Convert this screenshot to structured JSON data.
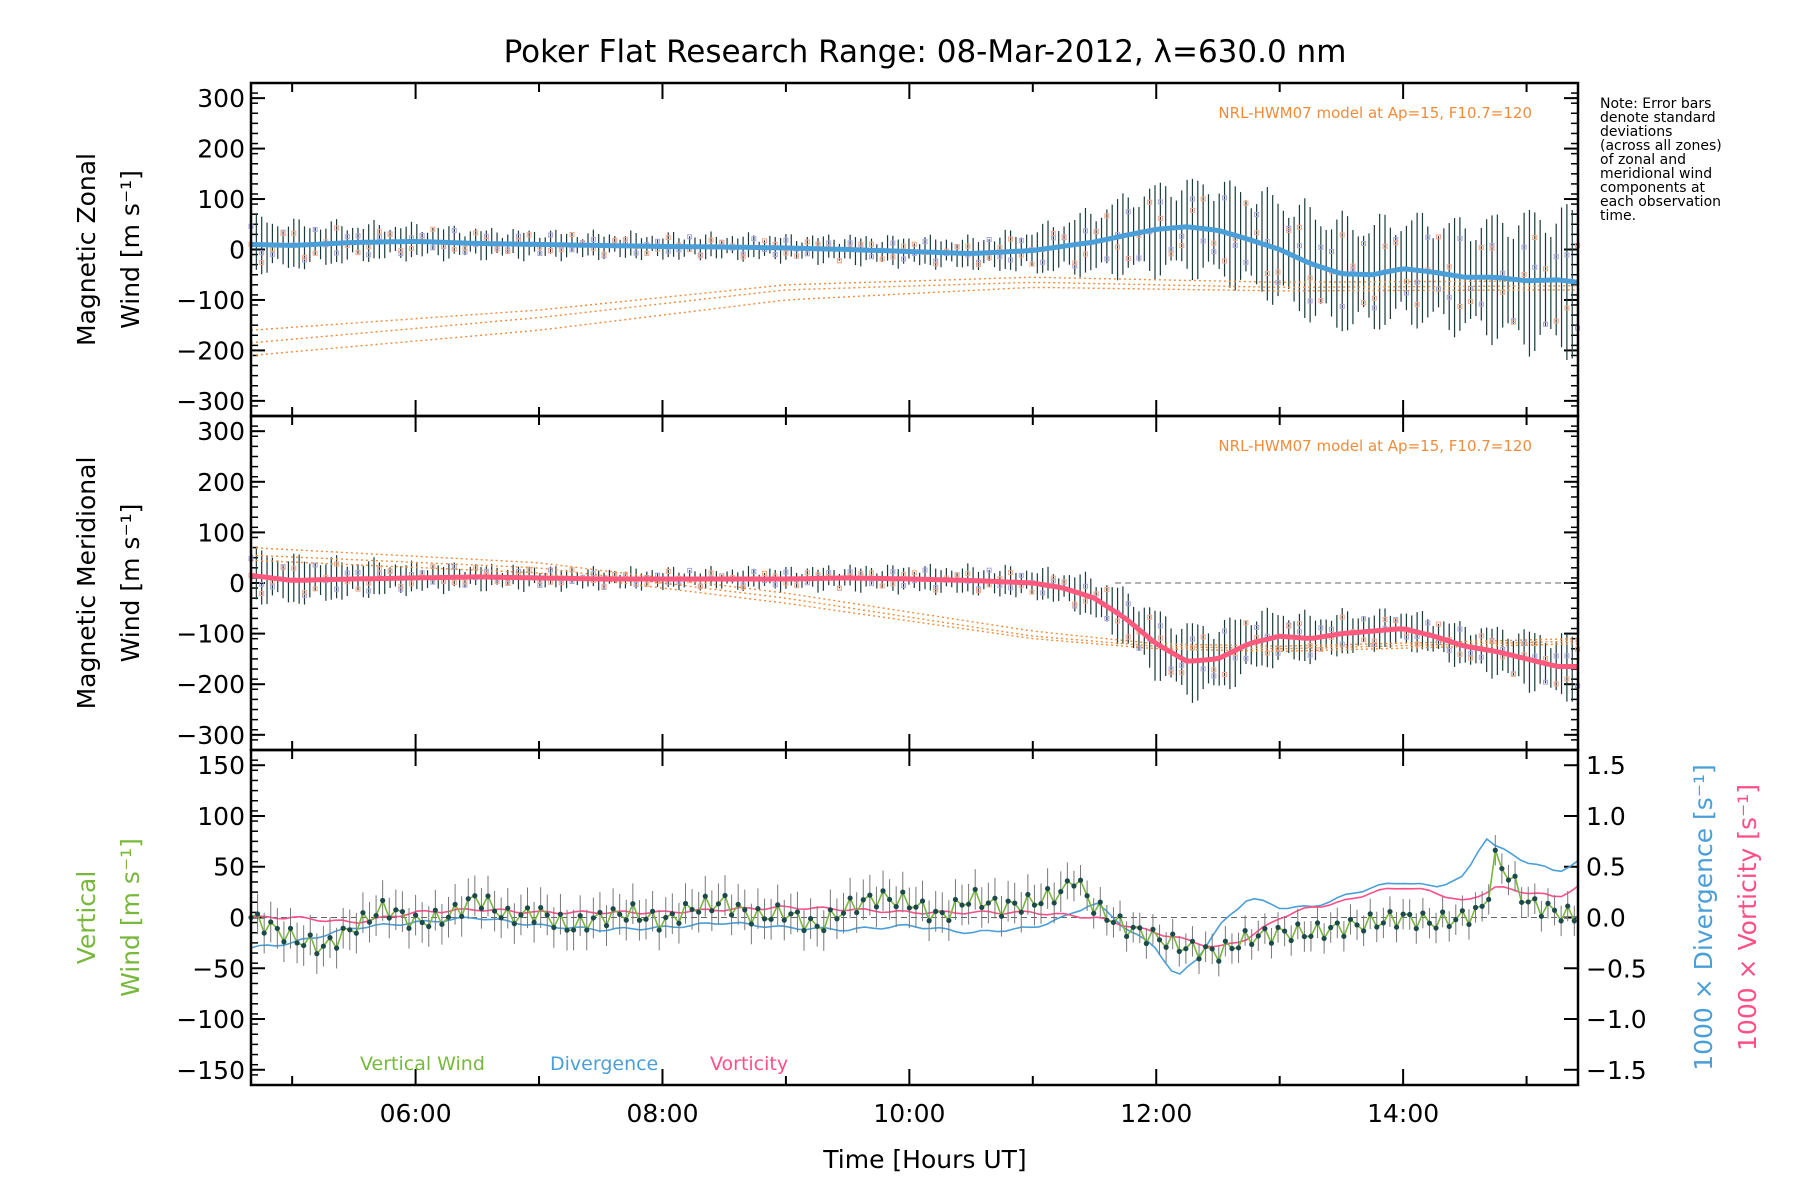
{
  "figure": {
    "title": "Poker Flat Research Range: 08-Mar-2012, λ=630.0 nm",
    "note_lines": [
      "Note: Error bars",
      "denote standard",
      "deviations",
      "(across all zones)",
      "of zonal and",
      "meridional wind",
      "components at",
      "each observation",
      "time."
    ],
    "model_label": "NRL-HWM07 model at Ap=15, F10.7=120",
    "xlabel": "Time [Hours UT]"
  },
  "colors": {
    "zonal": "#4a9fd8",
    "zonal_dark": "#2a55d0",
    "meridional": "#ff5a7e",
    "vertical": "#78b83c",
    "vertical_points": "#1c4a4a",
    "divergence": "#4a9fd8",
    "vorticity": "#ff4f86",
    "model": "#f08c3c",
    "scatter": "#a9a6e2",
    "zone_orange": "#f5a98a"
  },
  "chart_data": [
    {
      "type": "line",
      "panel": "zonal",
      "ylabel_lines": [
        "Magnetic Zonal",
        "Wind [m s⁻¹]"
      ],
      "ylim": [
        -330,
        330
      ],
      "yticks": [
        300,
        200,
        100,
        0,
        -100,
        -200,
        -300
      ],
      "ytick_labels": [
        "300",
        "200",
        "100",
        "0",
        "−100",
        "−200",
        "−300"
      ],
      "xlim": [
        "04:40",
        "15:25"
      ],
      "annotation": "NRL-HWM07 model at Ap=15, F10.7=120",
      "series": [
        {
          "x": [
            "04:40",
            "05:00",
            "05:30",
            "06:00",
            "06:30",
            "07:00",
            "07:30",
            "08:00",
            "08:30",
            "09:00",
            "09:30",
            "10:00",
            "10:30",
            "11:00",
            "11:30",
            "11:45",
            "12:00",
            "12:15",
            "12:30",
            "12:45",
            "13:00",
            "13:15",
            "13:30",
            "13:45",
            "14:00",
            "14:15",
            "14:30",
            "14:45",
            "15:00",
            "15:15",
            "15:25"
          ],
          "values": [
            10,
            8,
            14,
            16,
            12,
            10,
            8,
            6,
            5,
            3,
            0,
            -4,
            -8,
            -2,
            15,
            28,
            40,
            45,
            38,
            20,
            0,
            -28,
            -48,
            -50,
            -38,
            -45,
            -55,
            -55,
            -62,
            -60,
            -65
          ],
          "errors": [
            60,
            50,
            40,
            35,
            30,
            28,
            26,
            25,
            25,
            26,
            28,
            30,
            32,
            45,
            70,
            85,
            95,
            100,
            105,
            110,
            115,
            120,
            120,
            115,
            115,
            115,
            120,
            130,
            145,
            150,
            160
          ]
        }
      ],
      "model_series": [
        {
          "x": [
            "04:40",
            "07:00",
            "09:00",
            "11:00",
            "13:00",
            "15:25"
          ],
          "values": [
            -160,
            -120,
            -70,
            -55,
            -65,
            -62
          ]
        },
        {
          "x": [
            "04:40",
            "07:00",
            "09:00",
            "11:00",
            "13:00",
            "15:25"
          ],
          "values": [
            -185,
            -135,
            -80,
            -65,
            -75,
            -72
          ]
        },
        {
          "x": [
            "04:40",
            "07:00",
            "09:00",
            "11:00",
            "13:00",
            "15:25"
          ],
          "values": [
            -210,
            -160,
            -100,
            -75,
            -82,
            -80
          ]
        }
      ]
    },
    {
      "type": "line",
      "panel": "meridional",
      "ylabel_lines": [
        "Magnetic Meridional",
        "Wind [m s⁻¹]"
      ],
      "ylim": [
        -330,
        330
      ],
      "yticks": [
        300,
        200,
        100,
        0,
        -100,
        -200,
        -300
      ],
      "ytick_labels": [
        "300",
        "200",
        "100",
        "0",
        "−100",
        "−200",
        "−300"
      ],
      "xlim": [
        "04:40",
        "15:25"
      ],
      "annotation": "NRL-HWM07 model at Ap=15, F10.7=120",
      "series": [
        {
          "x": [
            "04:40",
            "05:00",
            "05:30",
            "06:00",
            "06:30",
            "07:00",
            "07:30",
            "08:00",
            "08:30",
            "09:00",
            "09:30",
            "10:00",
            "10:30",
            "11:00",
            "11:15",
            "11:30",
            "11:45",
            "12:00",
            "12:15",
            "12:30",
            "12:45",
            "13:00",
            "13:15",
            "13:30",
            "13:45",
            "14:00",
            "14:15",
            "14:30",
            "14:45",
            "15:00",
            "15:15",
            "15:25"
          ],
          "values": [
            15,
            5,
            8,
            10,
            12,
            10,
            8,
            8,
            8,
            8,
            10,
            8,
            5,
            0,
            -10,
            -30,
            -70,
            -120,
            -155,
            -150,
            -120,
            -105,
            -110,
            -100,
            -95,
            -90,
            -105,
            -125,
            -135,
            -150,
            -165,
            -165
          ],
          "errors": [
            55,
            50,
            40,
            30,
            25,
            22,
            20,
            20,
            20,
            22,
            24,
            26,
            28,
            30,
            35,
            45,
            60,
            70,
            80,
            75,
            65,
            55,
            50,
            45,
            40,
            40,
            40,
            45,
            50,
            60,
            65,
            70
          ]
        }
      ],
      "model_series": [
        {
          "x": [
            "04:40",
            "07:00",
            "09:00",
            "11:00",
            "12:00",
            "13:00",
            "15:25"
          ],
          "values": [
            70,
            40,
            -20,
            -95,
            -120,
            -125,
            -110
          ]
        },
        {
          "x": [
            "04:40",
            "07:00",
            "09:00",
            "11:00",
            "12:00",
            "13:00",
            "15:25"
          ],
          "values": [
            55,
            30,
            -30,
            -105,
            -125,
            -130,
            -115
          ]
        },
        {
          "x": [
            "04:40",
            "07:00",
            "09:00",
            "11:00",
            "12:00",
            "13:00",
            "15:25"
          ],
          "values": [
            45,
            20,
            -40,
            -110,
            -130,
            -135,
            -120
          ]
        }
      ]
    },
    {
      "type": "line",
      "panel": "vertical",
      "ylabel_lines": [
        "Vertical",
        "Wind [m s⁻¹]"
      ],
      "ylim": [
        -165,
        165
      ],
      "yticks": [
        150,
        100,
        50,
        0,
        -50,
        -100,
        -150
      ],
      "ytick_labels": [
        "150",
        "100",
        "50",
        "0",
        "−50",
        "−100",
        "−150"
      ],
      "y2label_divergence": "1000 × Divergence [s⁻¹]",
      "y2label_vorticity": "1000 × Vorticity [s⁻¹]",
      "y2lim": [
        -1.65,
        1.65
      ],
      "y2ticks": [
        1.5,
        1.0,
        0.5,
        0.0,
        -0.5,
        -1.0,
        -1.5
      ],
      "y2tick_labels": [
        "1.5",
        "1.0",
        "0.5",
        "0.0",
        "−0.5",
        "−1.0",
        "−1.5"
      ],
      "xlim": [
        "04:40",
        "15:25"
      ],
      "xticks": [
        "06:00",
        "08:00",
        "10:00",
        "12:00",
        "14:00"
      ],
      "legend": [
        "Vertical Wind",
        "Divergence",
        "Vorticity"
      ],
      "series": [
        {
          "name": "Vertical Wind",
          "x": [
            "04:40",
            "05:00",
            "05:15",
            "05:30",
            "05:45",
            "06:00",
            "06:15",
            "06:30",
            "06:45",
            "07:00",
            "07:15",
            "07:30",
            "07:45",
            "08:00",
            "08:15",
            "08:30",
            "08:45",
            "09:00",
            "09:15",
            "09:30",
            "09:45",
            "10:00",
            "10:15",
            "10:30",
            "10:45",
            "11:00",
            "11:15",
            "11:20",
            "11:30",
            "11:45",
            "12:00",
            "12:15",
            "12:30",
            "12:45",
            "13:00",
            "13:15",
            "13:30",
            "13:45",
            "14:00",
            "14:15",
            "14:30",
            "14:40",
            "14:45",
            "15:00",
            "15:15",
            "15:25"
          ],
          "values": [
            0,
            -20,
            -30,
            -10,
            10,
            -5,
            0,
            20,
            0,
            5,
            -10,
            0,
            5,
            -5,
            10,
            15,
            0,
            5,
            -10,
            10,
            20,
            15,
            0,
            20,
            10,
            15,
            25,
            40,
            10,
            -10,
            -20,
            -30,
            -35,
            -20,
            -15,
            -15,
            -10,
            -5,
            0,
            -5,
            0,
            10,
            60,
            15,
            5,
            0
          ],
          "errors": [
            20,
            20,
            20,
            20,
            20,
            20,
            20,
            20,
            20,
            20,
            20,
            20,
            20,
            20,
            20,
            20,
            20,
            20,
            20,
            20,
            20,
            20,
            20,
            20,
            20,
            20,
            20,
            15,
            15,
            15,
            15,
            15,
            15,
            15,
            15,
            15,
            15,
            15,
            15,
            15,
            15,
            15,
            15,
            15,
            15,
            15
          ]
        },
        {
          "name": "Divergence",
          "axis": "right",
          "x": [
            "04:40",
            "05:00",
            "05:30",
            "06:00",
            "06:30",
            "07:00",
            "07:30",
            "08:00",
            "08:30",
            "09:00",
            "09:30",
            "10:00",
            "10:30",
            "11:00",
            "11:15",
            "11:30",
            "11:45",
            "12:00",
            "12:10",
            "12:20",
            "12:30",
            "12:45",
            "13:00",
            "13:15",
            "13:30",
            "13:45",
            "14:00",
            "14:15",
            "14:30",
            "14:40",
            "14:45",
            "15:00",
            "15:15",
            "15:25"
          ],
          "values": [
            -0.3,
            -0.25,
            -0.1,
            -0.05,
            0.0,
            -0.08,
            -0.12,
            -0.1,
            -0.05,
            -0.1,
            -0.12,
            -0.08,
            -0.15,
            -0.1,
            0.0,
            0.15,
            -0.1,
            -0.3,
            -0.6,
            -0.4,
            -0.1,
            0.2,
            0.1,
            0.1,
            0.2,
            0.3,
            0.35,
            0.3,
            0.4,
            0.8,
            0.7,
            0.55,
            0.45,
            0.55
          ]
        },
        {
          "name": "Vorticity",
          "axis": "right",
          "x": [
            "04:40",
            "05:00",
            "05:30",
            "06:00",
            "06:30",
            "07:00",
            "07:30",
            "08:00",
            "08:30",
            "09:00",
            "09:30",
            "10:00",
            "10:30",
            "11:00",
            "11:30",
            "12:00",
            "12:30",
            "12:45",
            "13:00",
            "13:15",
            "13:30",
            "13:45",
            "14:00",
            "14:15",
            "14:30",
            "14:45",
            "15:00",
            "15:15",
            "15:25"
          ],
          "values": [
            0.0,
            0.0,
            -0.05,
            0.05,
            0.08,
            0.05,
            0.05,
            0.05,
            0.08,
            0.1,
            0.08,
            0.05,
            0.05,
            0.05,
            0.0,
            -0.15,
            -0.3,
            -0.2,
            0.0,
            0.1,
            0.15,
            0.25,
            0.3,
            0.25,
            0.15,
            0.3,
            0.25,
            0.2,
            0.3
          ]
        }
      ]
    }
  ]
}
